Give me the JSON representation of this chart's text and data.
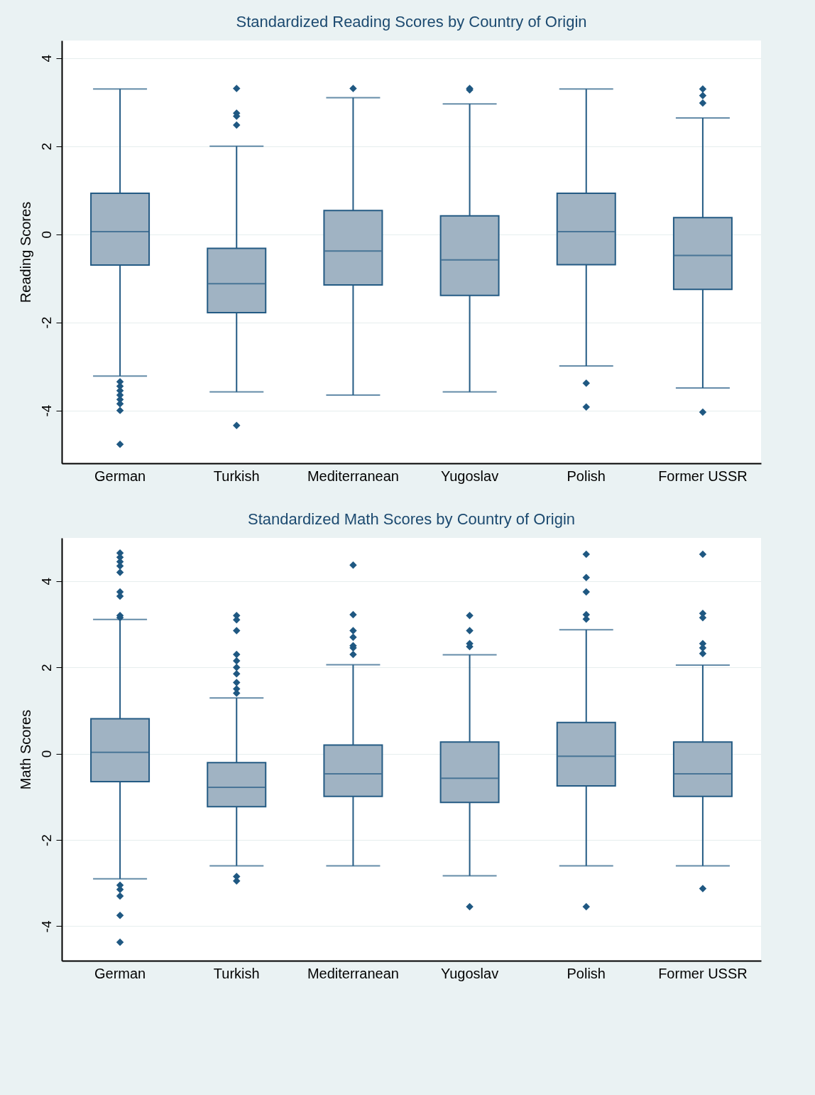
{
  "chart_data": [
    {
      "type": "box",
      "title": "Standardized Reading Scores by Country of Origin",
      "ylabel": "Reading Scores",
      "categories": [
        "German",
        "Turkish",
        "Mediterranean",
        "Yugoslav",
        "Polish",
        "Former USSR"
      ],
      "color": "#a0b3c3",
      "marker": "diamond",
      "grid": "y",
      "ylim": [
        -5.2,
        4.4
      ],
      "yticks": [
        -4,
        -2,
        0,
        2,
        4
      ],
      "boxes": [
        {
          "low": -3.22,
          "q1": -0.7,
          "median": 0.06,
          "q3": 0.93,
          "high": 3.3,
          "outliers": [
            -3.35,
            -3.45,
            -3.55,
            -3.65,
            -3.75,
            -3.85,
            -4.0,
            -4.77
          ]
        },
        {
          "low": -3.58,
          "q1": -1.78,
          "median": -1.12,
          "q3": -0.32,
          "high": 2.0,
          "outliers": [
            3.31,
            2.75,
            2.68,
            2.48,
            -4.34
          ]
        },
        {
          "low": -3.65,
          "q1": -1.15,
          "median": -0.38,
          "q3": 0.54,
          "high": 3.1,
          "outliers": [
            3.31
          ]
        },
        {
          "low": -3.58,
          "q1": -1.39,
          "median": -0.58,
          "q3": 0.42,
          "high": 2.96,
          "outliers": [
            3.28,
            3.31
          ]
        },
        {
          "low": -2.99,
          "q1": -0.69,
          "median": 0.06,
          "q3": 0.93,
          "high": 3.3,
          "outliers": [
            -3.38,
            -3.92
          ]
        },
        {
          "low": -3.49,
          "q1": -1.25,
          "median": -0.48,
          "q3": 0.38,
          "high": 2.64,
          "outliers": [
            3.3,
            3.15,
            2.98,
            -4.04
          ]
        }
      ]
    },
    {
      "type": "box",
      "title": "Standardized Math Scores by Country of Origin",
      "ylabel": "Math Scores",
      "categories": [
        "German",
        "Turkish",
        "Mediterranean",
        "Yugoslav",
        "Polish",
        "Former USSR"
      ],
      "color": "#a0b3c3",
      "marker": "diamond",
      "grid": "y",
      "ylim": [
        -4.8,
        5.0
      ],
      "yticks": [
        -4,
        -2,
        0,
        2,
        4
      ],
      "boxes": [
        {
          "low": -2.9,
          "q1": -0.65,
          "median": 0.03,
          "q3": 0.81,
          "high": 3.11,
          "outliers": [
            4.65,
            4.55,
            4.45,
            4.35,
            4.2,
            3.75,
            3.65,
            3.2,
            3.15,
            -3.05,
            -3.15,
            -3.3,
            -3.75,
            -4.37
          ]
        },
        {
          "low": -2.6,
          "q1": -1.23,
          "median": -0.78,
          "q3": -0.21,
          "high": 1.29,
          "outliers": [
            3.2,
            3.1,
            2.85,
            2.3,
            2.15,
            2.0,
            1.85,
            1.65,
            1.5,
            1.4,
            -2.85,
            -2.95
          ]
        },
        {
          "low": -2.6,
          "q1": -0.99,
          "median": -0.47,
          "q3": 0.2,
          "high": 2.06,
          "outliers": [
            4.37,
            3.22,
            2.85,
            2.7,
            2.5,
            2.45,
            2.3
          ]
        },
        {
          "low": -2.83,
          "q1": -1.13,
          "median": -0.57,
          "q3": 0.27,
          "high": 2.29,
          "outliers": [
            3.2,
            2.85,
            2.55,
            2.48,
            -3.55
          ]
        },
        {
          "low": -2.6,
          "q1": -0.75,
          "median": -0.06,
          "q3": 0.72,
          "high": 2.87,
          "outliers": [
            4.62,
            4.08,
            3.75,
            3.22,
            3.12,
            -3.55
          ]
        },
        {
          "low": -2.6,
          "q1": -0.99,
          "median": -0.47,
          "q3": 0.27,
          "high": 2.05,
          "outliers": [
            4.62,
            3.25,
            3.15,
            2.55,
            2.45,
            2.32,
            -3.13
          ]
        }
      ]
    }
  ]
}
